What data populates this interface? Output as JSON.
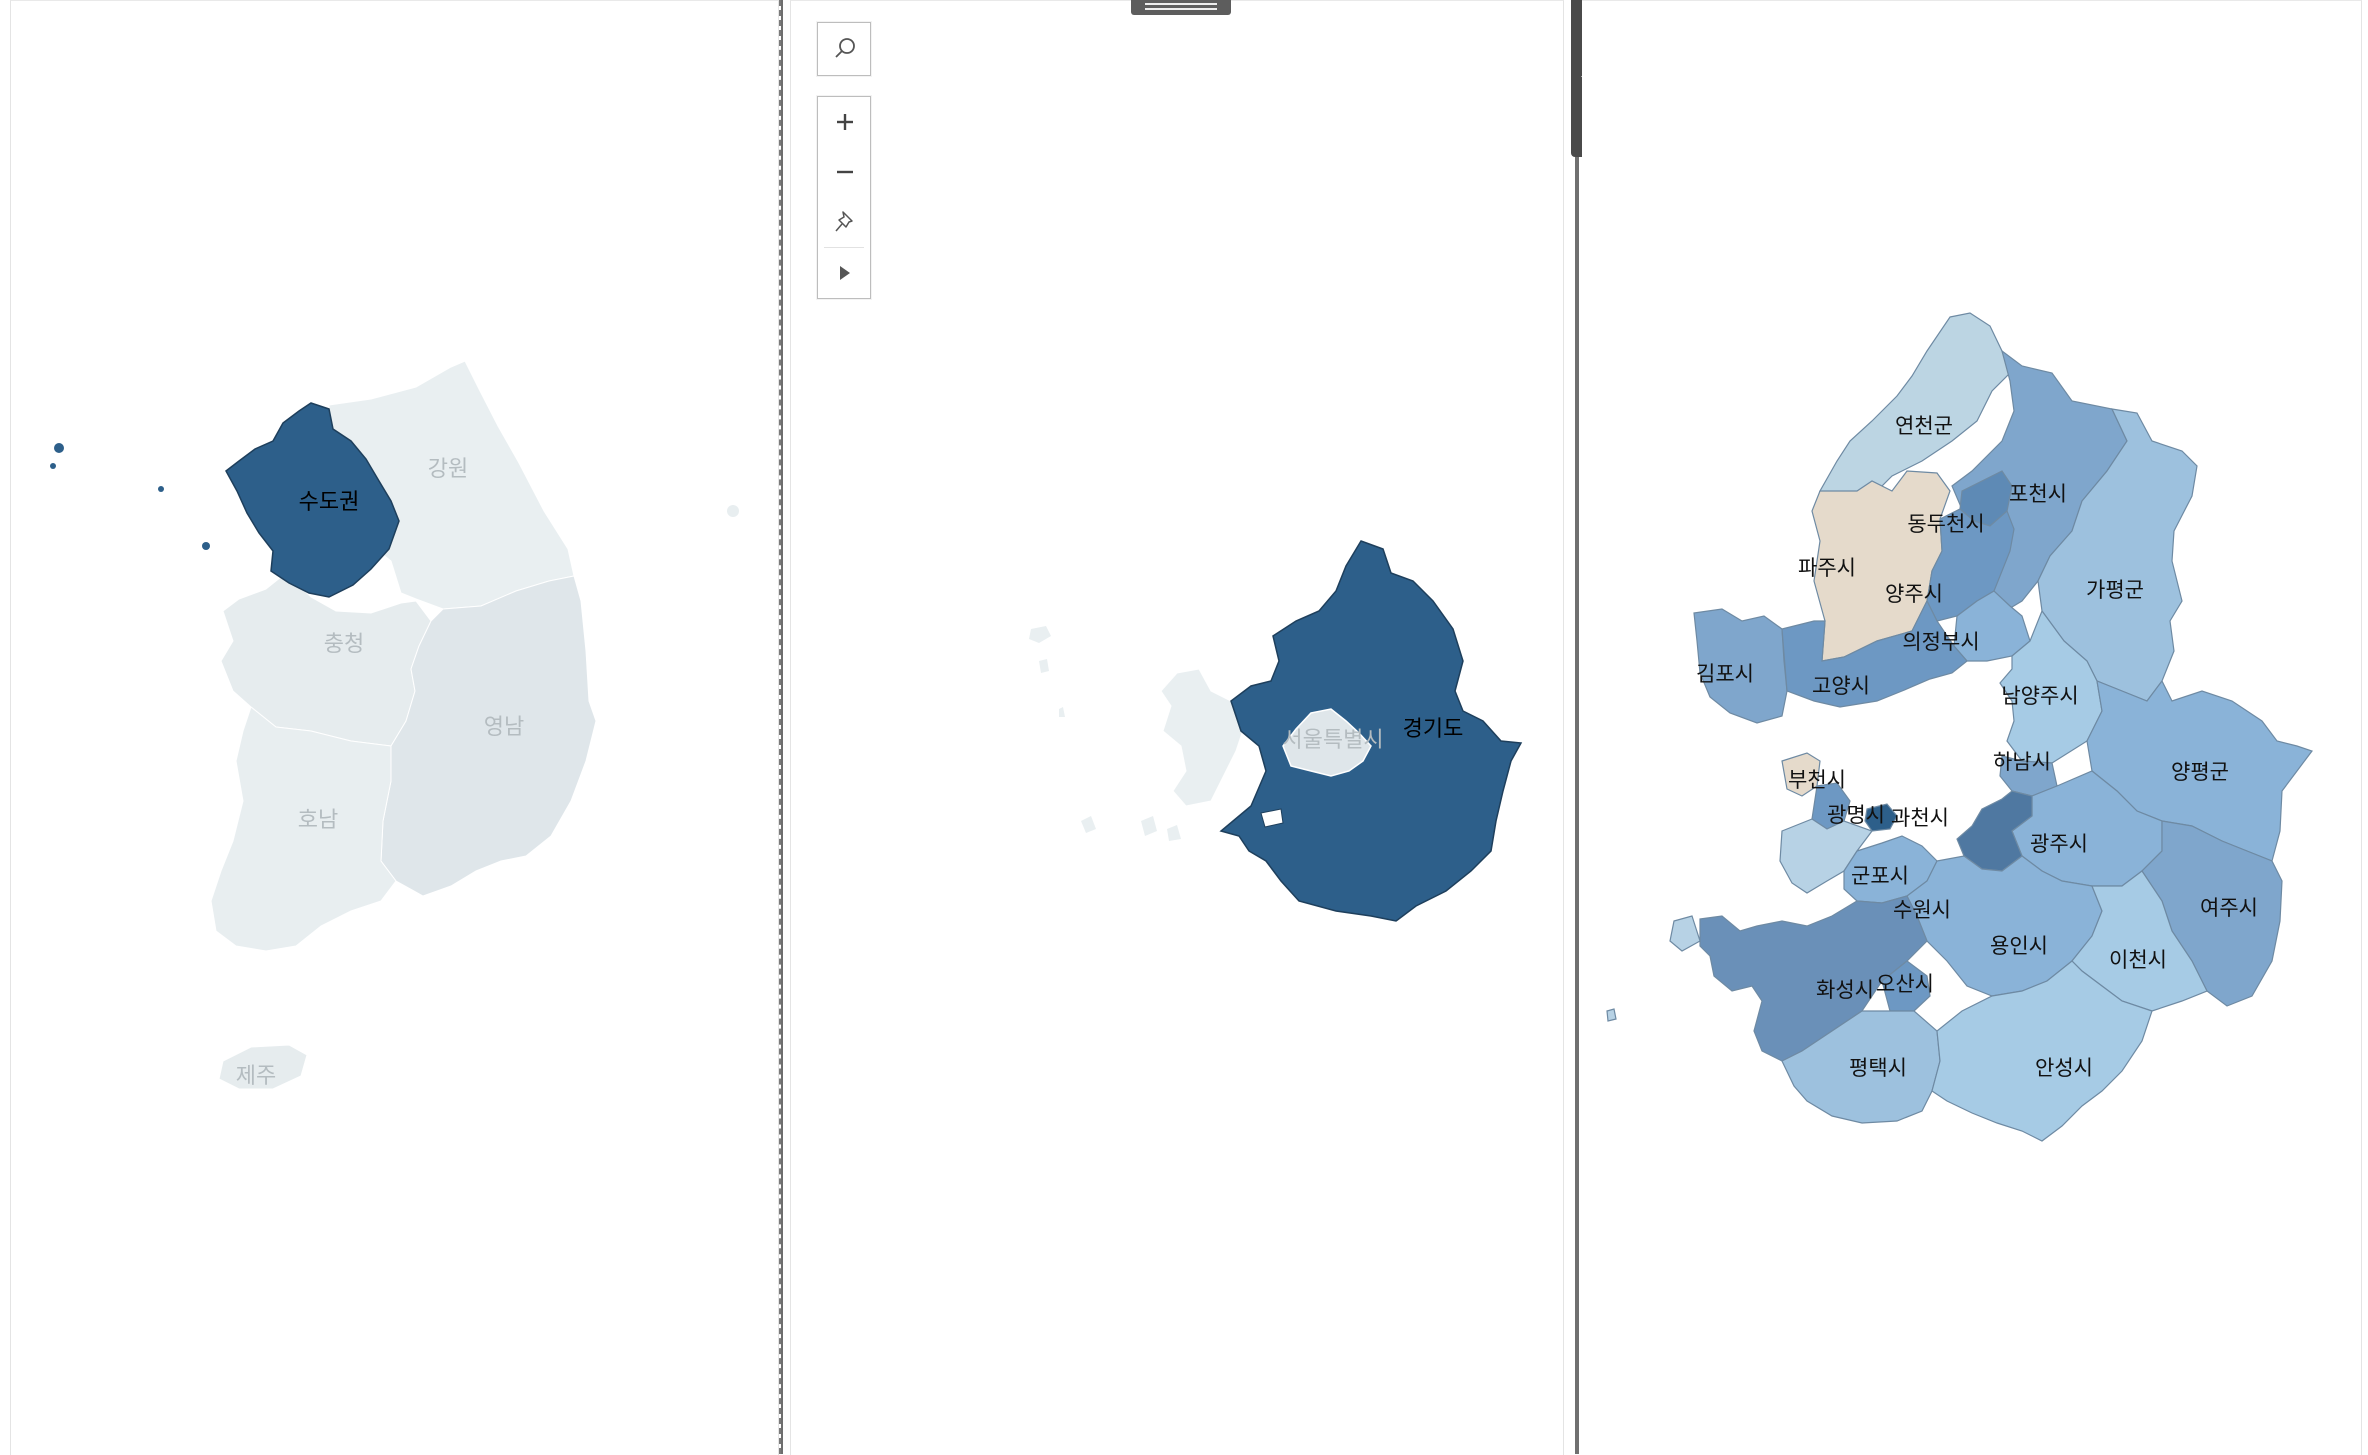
{
  "maps": {
    "korea": {
      "regions": [
        {
          "name": "수도권",
          "selected": true
        },
        {
          "name": "강원",
          "selected": false
        },
        {
          "name": "충청",
          "selected": false
        },
        {
          "name": "영남",
          "selected": false
        },
        {
          "name": "호남",
          "selected": false
        },
        {
          "name": "제주",
          "selected": false
        }
      ]
    },
    "metro": {
      "regions": [
        {
          "name": "경기도",
          "selected": true
        },
        {
          "name": "서울특별시",
          "selected": false
        }
      ]
    },
    "gyeonggi": {
      "regions": [
        "연천군",
        "포천시",
        "동두천시",
        "파주시",
        "양주시",
        "가평군",
        "의정부시",
        "김포시",
        "고양시",
        "남양주시",
        "하남시",
        "양평군",
        "부천시",
        "광명시",
        "과천시",
        "광주시",
        "군포시",
        "수원시",
        "여주시",
        "용인시",
        "이천시",
        "화성시",
        "오산시",
        "평택시",
        "안성시"
      ]
    }
  },
  "toolbar": {
    "icons": [
      "search-icon",
      "zoom-in-icon",
      "zoom-out-icon",
      "pin-icon",
      "expand-icon"
    ]
  },
  "worksheet_menu": {
    "icons": [
      "close-icon",
      "open-in-new-icon",
      "filter-icon",
      "dropdown-arrow-icon"
    ]
  },
  "colors": {
    "selected": "#2d5f8a",
    "faded": "#e8eef0",
    "faded_dark": "#dfe6ea",
    "faded_text": "#b4bcc0",
    "neutral": "#e8dccb"
  }
}
